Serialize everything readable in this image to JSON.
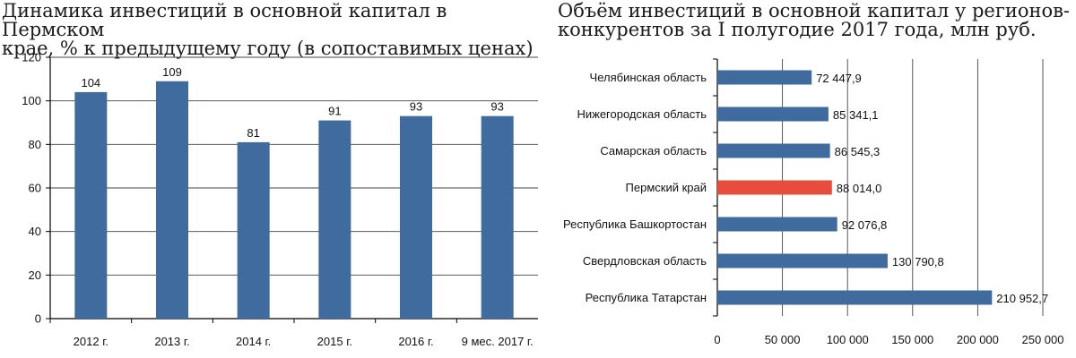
{
  "charts": [
    {
      "title_lines": [
        "Динамика инвестиций в основной капитал в Пермском",
        "крае, % к предыдущему году (в сопоставимых ценах)"
      ]
    },
    {
      "title_lines": [
        "Объём инвестиций в основной капитал у регионов-",
        "конкурентов за I полугодие 2017 года, млн руб."
      ]
    }
  ],
  "colors": {
    "bar": "#3f6b9e",
    "highlight": "#e74c3c",
    "grid": "#444444"
  },
  "chart_data": [
    {
      "type": "bar",
      "categories": [
        "2012 г.",
        "2013 г.",
        "2014 г.",
        "2015 г.",
        "2016 г.",
        "9 мес. 2017 г."
      ],
      "values": [
        104,
        109,
        81,
        91,
        93,
        93
      ],
      "data_labels": [
        "104",
        "109",
        "81",
        "91",
        "93",
        "93"
      ],
      "title": "Динамика инвестиций в основной капитал в Пермском крае, % к предыдущему году (в сопоставимых ценах)",
      "xlabel": "",
      "ylabel": "",
      "ylim": [
        0,
        120
      ],
      "yticks": [
        0,
        20,
        40,
        60,
        80,
        100,
        120
      ],
      "grid": true,
      "legend": "none"
    },
    {
      "type": "bar",
      "orientation": "horizontal",
      "categories": [
        "Челябинская область",
        "Нижегородская область",
        "Самарская область",
        "Пермский край",
        "Республика Башкортостан",
        "Свердловская область",
        "Республика Татарстан"
      ],
      "values": [
        72447.9,
        85341.1,
        86545.3,
        88014.0,
        92076.8,
        130790.8,
        210952.7
      ],
      "data_labels": [
        "72 447,9",
        "85 341,1",
        "86 545,3",
        "88 014,0",
        "92 076,8",
        "130 790,8",
        "210 952,7"
      ],
      "highlight": "Пермский край",
      "title": "Объём инвестиций в основной капитал у регионов-конкурентов за I полугодие 2017 года, млн руб.",
      "xlabel": "",
      "ylabel": "",
      "xlim": [
        0,
        250000
      ],
      "xticks": [
        0,
        50000,
        100000,
        150000,
        200000,
        250000
      ],
      "xtick_labels": [
        "0",
        "50 000",
        "100 000",
        "150 000",
        "200 000",
        "250 000"
      ],
      "grid": true,
      "legend": "none"
    }
  ]
}
